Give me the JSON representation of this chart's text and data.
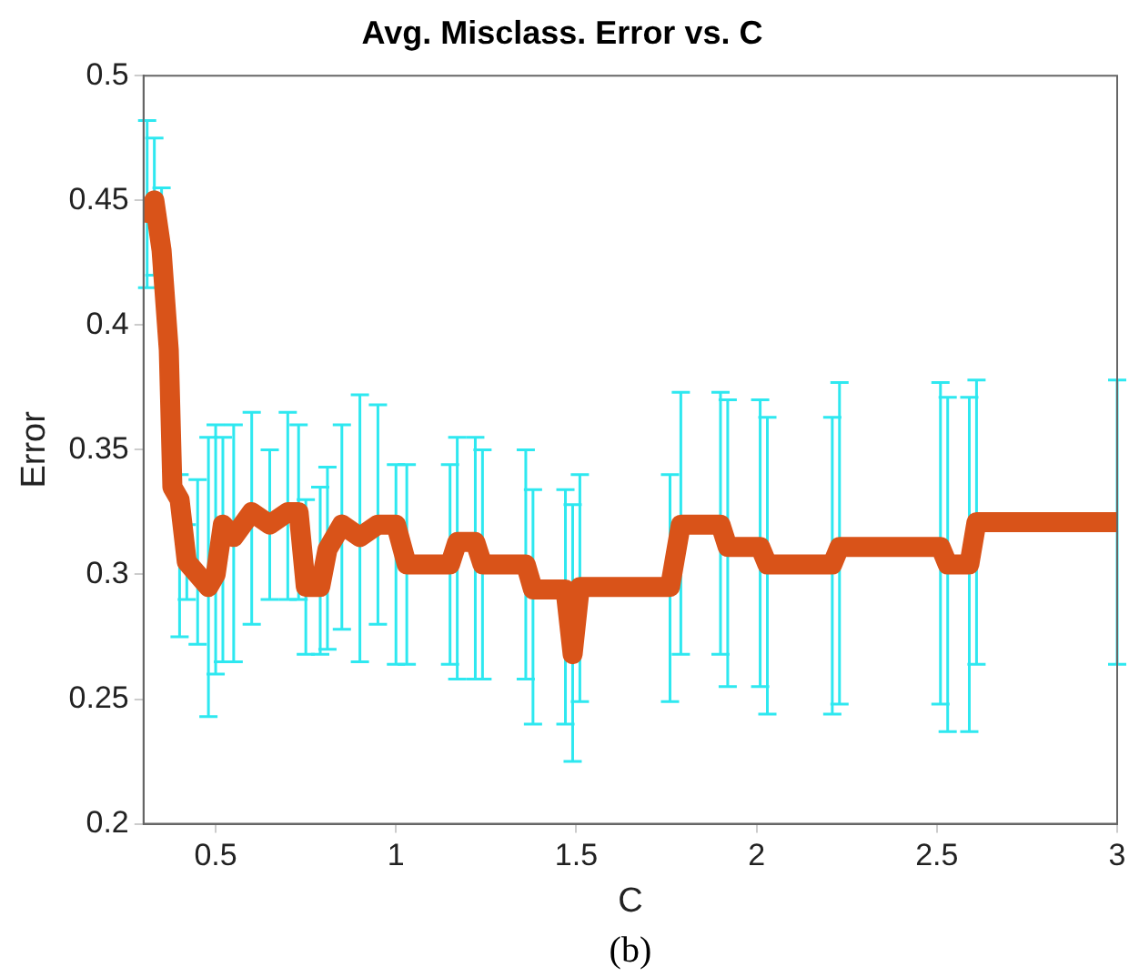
{
  "chart_data": {
    "type": "line",
    "title": "Avg. Misclass. Error vs. C",
    "xlabel": "C",
    "ylabel": "Error",
    "annotations": [
      "(b)"
    ],
    "grid": false,
    "legend": false,
    "xlim": [
      0.3,
      3
    ],
    "xticks": [
      0.5,
      1,
      1.5,
      2,
      2.5,
      3
    ],
    "ylim": [
      0.2,
      0.5
    ],
    "yticks": [
      0.2,
      0.25,
      0.3,
      0.35,
      0.4,
      0.45,
      0.5
    ],
    "series": [
      {
        "color": "#d95319",
        "x": [
          0.31,
          0.33,
          0.35,
          0.37,
          0.38,
          0.4,
          0.42,
          0.45,
          0.48,
          0.5,
          0.52,
          0.55,
          0.6,
          0.65,
          0.7,
          0.73,
          0.75,
          0.79,
          0.81,
          0.85,
          0.9,
          0.95,
          1.0,
          1.03,
          1.15,
          1.17,
          1.22,
          1.24,
          1.36,
          1.38,
          1.47,
          1.49,
          1.51,
          1.76,
          1.79,
          1.9,
          1.92,
          2.01,
          2.03,
          2.21,
          2.23,
          2.51,
          2.53,
          2.59,
          2.61,
          3.0
        ],
        "values": [
          0.445,
          0.45,
          0.43,
          0.39,
          0.335,
          0.33,
          0.305,
          0.3,
          0.295,
          0.3,
          0.32,
          0.315,
          0.325,
          0.32,
          0.325,
          0.325,
          0.295,
          0.295,
          0.31,
          0.32,
          0.315,
          0.32,
          0.32,
          0.304,
          0.304,
          0.313,
          0.313,
          0.304,
          0.304,
          0.294,
          0.294,
          0.268,
          0.295,
          0.295,
          0.32,
          0.32,
          0.311,
          0.311,
          0.304,
          0.304,
          0.311,
          0.311,
          0.304,
          0.304,
          0.321,
          0.321
        ],
        "errors": [
          [
            0.415,
            0.482
          ],
          [
            0.42,
            0.475
          ],
          [
            0.43,
            0.455
          ],
          null,
          null,
          [
            0.275,
            0.34
          ],
          [
            0.29,
            0.32
          ],
          [
            0.272,
            0.338
          ],
          [
            0.243,
            0.355
          ],
          [
            0.26,
            0.36
          ],
          [
            0.265,
            0.355
          ],
          [
            0.265,
            0.36
          ],
          [
            0.28,
            0.365
          ],
          [
            0.29,
            0.35
          ],
          [
            0.29,
            0.365
          ],
          [
            0.29,
            0.36
          ],
          [
            0.268,
            0.33
          ],
          [
            0.268,
            0.335
          ],
          [
            0.27,
            0.343
          ],
          [
            0.278,
            0.36
          ],
          [
            0.265,
            0.372
          ],
          [
            0.28,
            0.368
          ],
          [
            0.264,
            0.344
          ],
          [
            0.264,
            0.344
          ],
          [
            0.264,
            0.344
          ],
          [
            0.258,
            0.355
          ],
          [
            0.258,
            0.355
          ],
          [
            0.258,
            0.35
          ],
          [
            0.258,
            0.35
          ],
          [
            0.24,
            0.334
          ],
          [
            0.24,
            0.334
          ],
          [
            0.225,
            0.328
          ],
          [
            0.249,
            0.34
          ],
          [
            0.249,
            0.34
          ],
          [
            0.268,
            0.373
          ],
          [
            0.268,
            0.373
          ],
          [
            0.255,
            0.37
          ],
          [
            0.255,
            0.37
          ],
          [
            0.244,
            0.363
          ],
          [
            0.244,
            0.363
          ],
          [
            0.248,
            0.377
          ],
          [
            0.248,
            0.377
          ],
          [
            0.237,
            0.371
          ],
          [
            0.237,
            0.371
          ],
          [
            0.264,
            0.378
          ],
          [
            0.264,
            0.378
          ]
        ]
      }
    ]
  }
}
